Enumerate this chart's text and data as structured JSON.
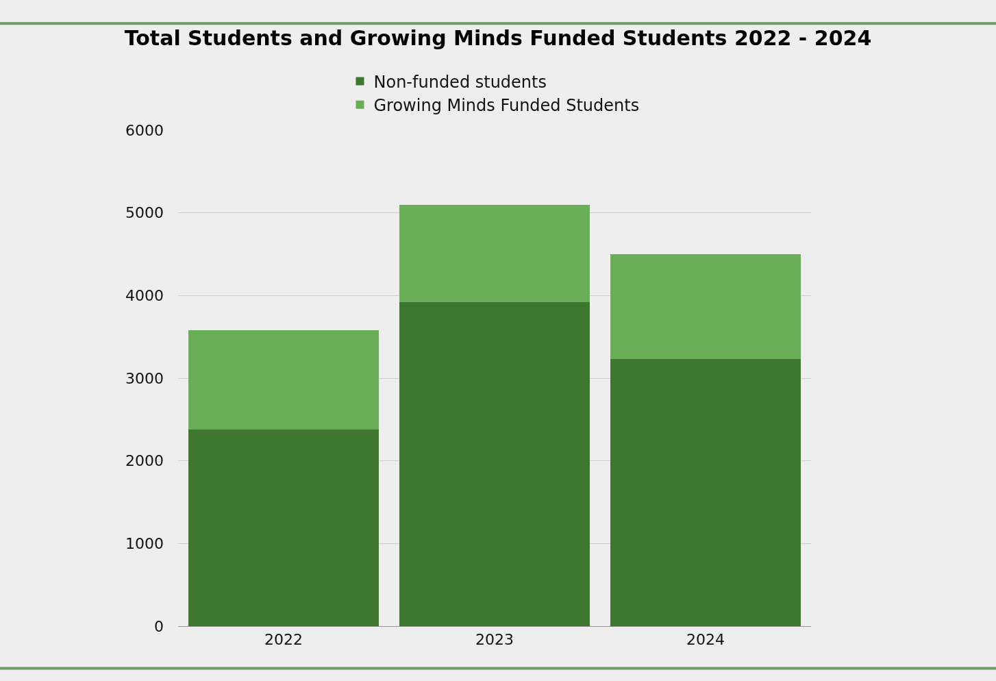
{
  "chart_data": {
    "type": "bar",
    "title": "Total Students and Growing Minds Funded Students 2022 - 2024",
    "categories": [
      "2022",
      "2023",
      "2024"
    ],
    "series": [
      {
        "name": "Non-funded students",
        "color": "#3f7630",
        "values": [
          2380,
          3920,
          3230
        ]
      },
      {
        "name": "Growing Minds Funded Students",
        "color": "#69ad57",
        "values": [
          1200,
          1180,
          1270
        ]
      }
    ],
    "stacked": true,
    "ylim": [
      0,
      6000
    ],
    "yticks": [
      0,
      1000,
      2000,
      3000,
      4000,
      5000,
      6000
    ],
    "grid": "y",
    "legend": "top"
  }
}
